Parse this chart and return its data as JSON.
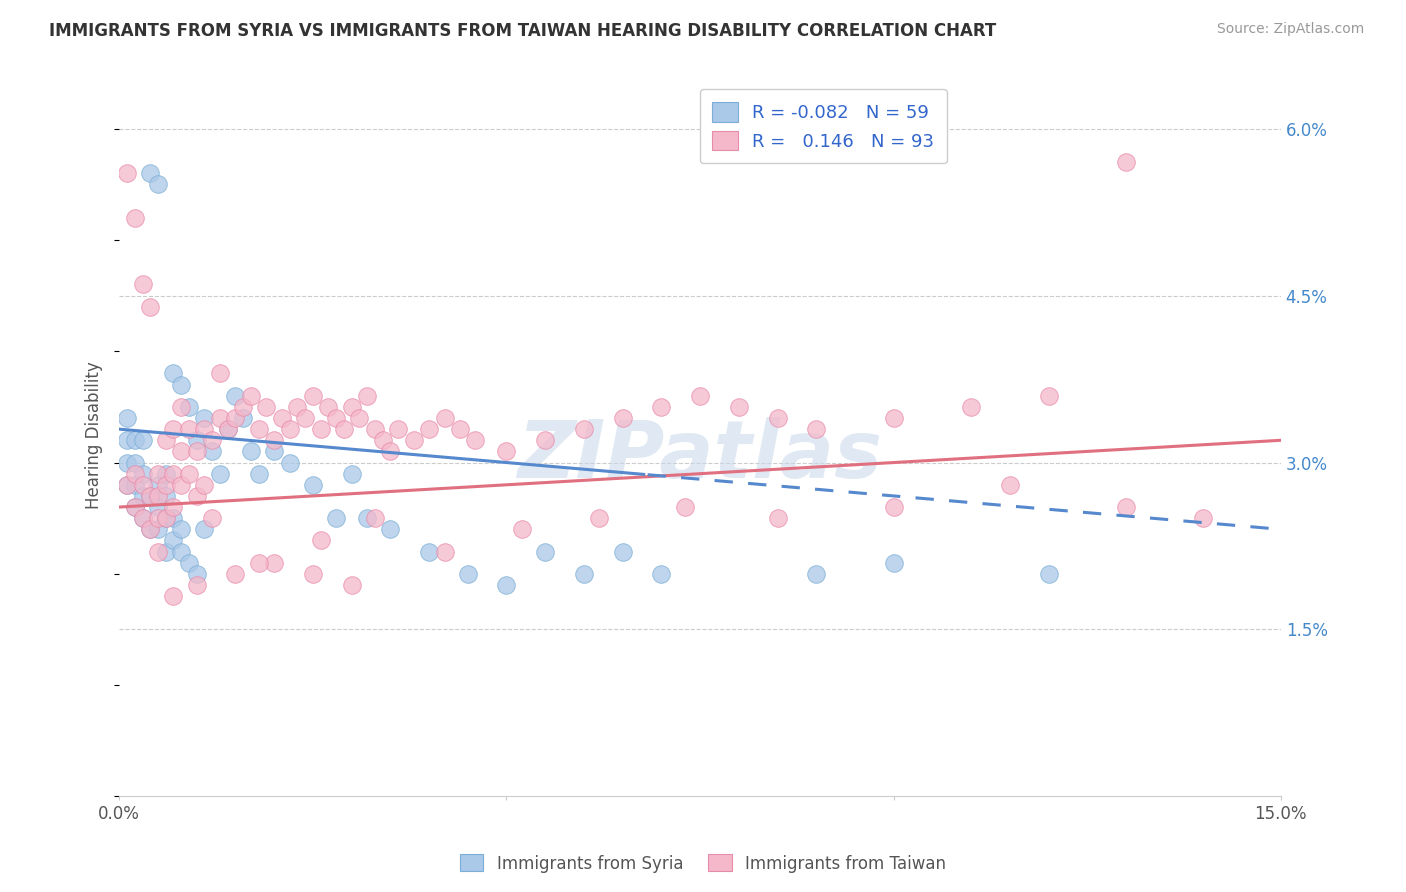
{
  "title": "IMMIGRANTS FROM SYRIA VS IMMIGRANTS FROM TAIWAN HEARING DISABILITY CORRELATION CHART",
  "source": "Source: ZipAtlas.com",
  "ylabel": "Hearing Disability",
  "yticks": [
    "6.0%",
    "4.5%",
    "3.0%",
    "1.5%"
  ],
  "ytick_vals": [
    0.06,
    0.045,
    0.03,
    0.015
  ],
  "xmin": 0.0,
  "xmax": 0.15,
  "ymin": 0.0,
  "ymax": 0.065,
  "legend_syria_r": "-0.082",
  "legend_syria_n": "59",
  "legend_taiwan_r": "0.146",
  "legend_taiwan_n": "93",
  "syria_face": "#aac8e8",
  "syria_edge": "#7aaed6",
  "taiwan_face": "#f4b8ca",
  "taiwan_edge": "#e88aaa",
  "syria_line": "#5588cc",
  "taiwan_line": "#e07080",
  "watermark": "ZIPatlas",
  "syria_x": [
    0.001,
    0.001,
    0.001,
    0.001,
    0.002,
    0.002,
    0.002,
    0.002,
    0.003,
    0.003,
    0.003,
    0.003,
    0.004,
    0.004,
    0.004,
    0.005,
    0.005,
    0.005,
    0.005,
    0.006,
    0.006,
    0.006,
    0.006,
    0.007,
    0.007,
    0.007,
    0.008,
    0.008,
    0.008,
    0.009,
    0.009,
    0.01,
    0.01,
    0.011,
    0.011,
    0.012,
    0.013,
    0.014,
    0.015,
    0.016,
    0.017,
    0.018,
    0.02,
    0.022,
    0.025,
    0.028,
    0.03,
    0.032,
    0.035,
    0.04,
    0.045,
    0.05,
    0.055,
    0.06,
    0.065,
    0.07,
    0.09,
    0.1,
    0.12
  ],
  "syria_y": [
    0.028,
    0.03,
    0.032,
    0.034,
    0.026,
    0.028,
    0.03,
    0.032,
    0.025,
    0.027,
    0.029,
    0.032,
    0.024,
    0.027,
    0.056,
    0.024,
    0.026,
    0.028,
    0.055,
    0.022,
    0.025,
    0.027,
    0.029,
    0.023,
    0.025,
    0.038,
    0.022,
    0.024,
    0.037,
    0.021,
    0.035,
    0.02,
    0.032,
    0.024,
    0.034,
    0.031,
    0.029,
    0.033,
    0.036,
    0.034,
    0.031,
    0.029,
    0.031,
    0.03,
    0.028,
    0.025,
    0.029,
    0.025,
    0.024,
    0.022,
    0.02,
    0.019,
    0.022,
    0.02,
    0.022,
    0.02,
    0.02,
    0.021,
    0.02
  ],
  "taiwan_x": [
    0.001,
    0.001,
    0.002,
    0.002,
    0.002,
    0.003,
    0.003,
    0.003,
    0.004,
    0.004,
    0.004,
    0.005,
    0.005,
    0.005,
    0.006,
    0.006,
    0.006,
    0.007,
    0.007,
    0.007,
    0.008,
    0.008,
    0.008,
    0.009,
    0.009,
    0.01,
    0.01,
    0.011,
    0.011,
    0.012,
    0.013,
    0.013,
    0.014,
    0.015,
    0.016,
    0.017,
    0.018,
    0.019,
    0.02,
    0.021,
    0.022,
    0.023,
    0.024,
    0.025,
    0.026,
    0.027,
    0.028,
    0.029,
    0.03,
    0.031,
    0.032,
    0.033,
    0.034,
    0.035,
    0.036,
    0.038,
    0.04,
    0.042,
    0.044,
    0.046,
    0.05,
    0.055,
    0.06,
    0.065,
    0.07,
    0.075,
    0.08,
    0.085,
    0.09,
    0.1,
    0.11,
    0.12,
    0.13,
    0.03,
    0.025,
    0.02,
    0.015,
    0.01,
    0.007,
    0.005,
    0.012,
    0.018,
    0.026,
    0.033,
    0.042,
    0.052,
    0.062,
    0.073,
    0.085,
    0.1,
    0.115,
    0.13,
    0.14
  ],
  "taiwan_y": [
    0.028,
    0.056,
    0.026,
    0.029,
    0.052,
    0.025,
    0.028,
    0.046,
    0.024,
    0.027,
    0.044,
    0.025,
    0.027,
    0.029,
    0.025,
    0.028,
    0.032,
    0.026,
    0.029,
    0.033,
    0.028,
    0.031,
    0.035,
    0.029,
    0.033,
    0.027,
    0.031,
    0.028,
    0.033,
    0.032,
    0.034,
    0.038,
    0.033,
    0.034,
    0.035,
    0.036,
    0.033,
    0.035,
    0.032,
    0.034,
    0.033,
    0.035,
    0.034,
    0.036,
    0.033,
    0.035,
    0.034,
    0.033,
    0.035,
    0.034,
    0.036,
    0.033,
    0.032,
    0.031,
    0.033,
    0.032,
    0.033,
    0.034,
    0.033,
    0.032,
    0.031,
    0.032,
    0.033,
    0.034,
    0.035,
    0.036,
    0.035,
    0.034,
    0.033,
    0.034,
    0.035,
    0.036,
    0.057,
    0.019,
    0.02,
    0.021,
    0.02,
    0.019,
    0.018,
    0.022,
    0.025,
    0.021,
    0.023,
    0.025,
    0.022,
    0.024,
    0.025,
    0.026,
    0.025,
    0.026,
    0.028,
    0.026,
    0.025
  ]
}
